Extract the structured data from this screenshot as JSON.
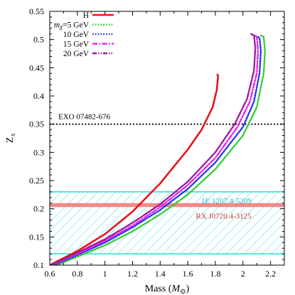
{
  "chart_data": {
    "type": "line",
    "xlabel": "Mass (M⊙)",
    "ylabel": "Z s",
    "xlim": [
      0.6,
      2.3
    ],
    "ylim": [
      0.1,
      0.55
    ],
    "x_ticks": [
      0.6,
      0.8,
      1.0,
      1.2,
      1.4,
      1.6,
      1.8,
      2.0,
      2.2
    ],
    "x_tick_labels": [
      "0.6",
      "0.8",
      "1",
      "1.2",
      "1.4",
      "1.6",
      "1.8",
      "2",
      "2.2"
    ],
    "y_ticks": [
      0.1,
      0.15,
      0.2,
      0.25,
      0.3,
      0.35,
      0.4,
      0.45,
      0.5,
      0.55
    ],
    "y_tick_labels": [
      "0.1",
      "0.15",
      "0.2",
      "0.25",
      "0.3",
      "0.35",
      "0.4",
      "0.45",
      "0.5",
      "0.55"
    ],
    "legend_position": "top-left",
    "series": [
      {
        "name": "H",
        "color": "#e8141c",
        "style": "solid",
        "points": [
          [
            0.6,
            0.1
          ],
          [
            0.8,
            0.125
          ],
          [
            1.0,
            0.155
          ],
          [
            1.2,
            0.195
          ],
          [
            1.4,
            0.245
          ],
          [
            1.6,
            0.305
          ],
          [
            1.7,
            0.34
          ],
          [
            1.78,
            0.38
          ],
          [
            1.81,
            0.41
          ],
          [
            1.82,
            0.435
          ],
          [
            1.815,
            0.438
          ]
        ]
      },
      {
        "name": "mχ=5 GeV",
        "color": "#2ecc2e",
        "style": "dotted",
        "points": [
          [
            0.6,
            0.095
          ],
          [
            0.8,
            0.115
          ],
          [
            1.0,
            0.135
          ],
          [
            1.2,
            0.16
          ],
          [
            1.4,
            0.19
          ],
          [
            1.6,
            0.225
          ],
          [
            1.8,
            0.27
          ],
          [
            2.0,
            0.33
          ],
          [
            2.1,
            0.38
          ],
          [
            2.15,
            0.44
          ],
          [
            2.16,
            0.48
          ],
          [
            2.15,
            0.505
          ],
          [
            2.13,
            0.507
          ]
        ]
      },
      {
        "name": "10 GeV",
        "color": "#2233ee",
        "style": "dotted",
        "points": [
          [
            0.6,
            0.097
          ],
          [
            0.8,
            0.118
          ],
          [
            1.0,
            0.14
          ],
          [
            1.2,
            0.167
          ],
          [
            1.4,
            0.198
          ],
          [
            1.6,
            0.235
          ],
          [
            1.8,
            0.282
          ],
          [
            2.0,
            0.345
          ],
          [
            2.08,
            0.39
          ],
          [
            2.12,
            0.44
          ],
          [
            2.13,
            0.48
          ],
          [
            2.12,
            0.503
          ],
          [
            2.1,
            0.506
          ]
        ]
      },
      {
        "name": "15 GeV",
        "color": "#ee22ee",
        "style": "dashdot",
        "points": [
          [
            0.6,
            0.098
          ],
          [
            0.8,
            0.12
          ],
          [
            1.0,
            0.143
          ],
          [
            1.2,
            0.17
          ],
          [
            1.4,
            0.203
          ],
          [
            1.6,
            0.242
          ],
          [
            1.8,
            0.29
          ],
          [
            1.96,
            0.345
          ],
          [
            2.05,
            0.39
          ],
          [
            2.1,
            0.44
          ],
          [
            2.11,
            0.48
          ],
          [
            2.1,
            0.505
          ],
          [
            2.08,
            0.508
          ]
        ]
      },
      {
        "name": "20 GeV",
        "color": "#9a1a9a",
        "style": "dashdotdot",
        "points": [
          [
            0.6,
            0.099
          ],
          [
            0.8,
            0.122
          ],
          [
            1.0,
            0.146
          ],
          [
            1.2,
            0.175
          ],
          [
            1.4,
            0.208
          ],
          [
            1.6,
            0.248
          ],
          [
            1.8,
            0.3
          ],
          [
            1.94,
            0.35
          ],
          [
            2.03,
            0.395
          ],
          [
            2.08,
            0.445
          ],
          [
            2.09,
            0.485
          ],
          [
            2.08,
            0.507
          ],
          [
            2.06,
            0.51
          ]
        ]
      }
    ],
    "reference_lines": [
      {
        "label": "EXO 07482-676",
        "y": 0.35,
        "color": "#000000",
        "style": "dotted"
      }
    ],
    "bands": [
      {
        "label": "1E 1207.4-5209",
        "y_min": 0.12,
        "y_max": 0.23,
        "color": "#22dddd",
        "hatched": true
      },
      {
        "label": "RX J0720.4-3125",
        "y_min": 0.203,
        "y_max": 0.21,
        "color": "#f08a8a",
        "hatched": false
      }
    ]
  }
}
